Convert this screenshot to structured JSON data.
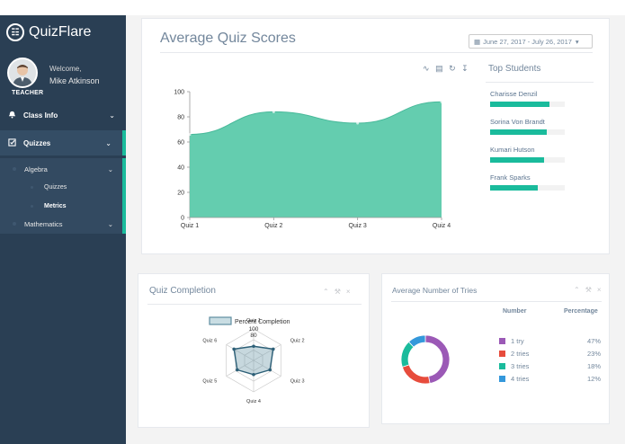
{
  "app": {
    "name": "QuizFlare"
  },
  "profile": {
    "welcome": "Welcome,",
    "name": "Mike Atkinson",
    "role": "TEACHER"
  },
  "sidebar": {
    "items": [
      {
        "label": "Class Info",
        "icon": "bell-icon"
      },
      {
        "label": "Quizzes",
        "icon": "checkbox-icon"
      }
    ],
    "sub": [
      {
        "label": "Algebra"
      },
      {
        "label": "Quizzes"
      },
      {
        "label": "Metrics"
      },
      {
        "label": "Mathematics"
      }
    ]
  },
  "main_chart": {
    "title": "Average Quiz Scores",
    "date_range": "June 27, 2017 - July 26, 2017",
    "tools": [
      "line-icon",
      "bar-icon",
      "refresh-icon",
      "download-icon"
    ]
  },
  "chart_data": [
    {
      "type": "area",
      "categories": [
        "Quiz 1",
        "Quiz 2",
        "Quiz 3",
        "Quiz 4"
      ],
      "values": [
        66,
        84,
        75,
        92
      ],
      "ylim": [
        0,
        100
      ],
      "yticks": [
        0,
        20,
        40,
        60,
        80,
        100
      ],
      "color": "#5ccaab"
    },
    {
      "type": "radar",
      "legend": "Percent Completion",
      "axes": [
        "Quiz 1",
        "Quiz 2",
        "Quiz 3",
        "Quiz 4",
        "Quiz 5",
        "Quiz 6"
      ],
      "values": [
        45,
        72,
        60,
        45,
        60,
        72
      ],
      "max": 100,
      "ticks": [
        100,
        80
      ],
      "color": "#5f8ea1"
    },
    {
      "type": "pie",
      "title": "Average Number of Tries",
      "slices": [
        {
          "label": "1 try",
          "value": 47,
          "percent": "47%",
          "color": "#9b59b6"
        },
        {
          "label": "2 tries",
          "value": 23,
          "percent": "23%",
          "color": "#e74c3c"
        },
        {
          "label": "3 tries",
          "value": 18,
          "percent": "18%",
          "color": "#1abb9c"
        },
        {
          "label": "4 tries",
          "value": 12,
          "percent": "12%",
          "color": "#3498db"
        }
      ]
    }
  ],
  "top_students": {
    "title": "Top Students",
    "students": [
      {
        "name": "Charisse Denzil",
        "progress": 0.8
      },
      {
        "name": "Sorina Von Brandt",
        "progress": 0.76
      },
      {
        "name": "Kumari Hutson",
        "progress": 0.72
      },
      {
        "name": "Frank Sparks",
        "progress": 0.64
      }
    ]
  },
  "completion_card": {
    "title": "Quiz Completion"
  },
  "tries_card": {
    "title": "Average Number of Tries",
    "col_number": "Number",
    "col_percentage": "Percentage"
  },
  "colors": {
    "sidebar": "#2a3f54",
    "accent": "#1abb9c"
  }
}
